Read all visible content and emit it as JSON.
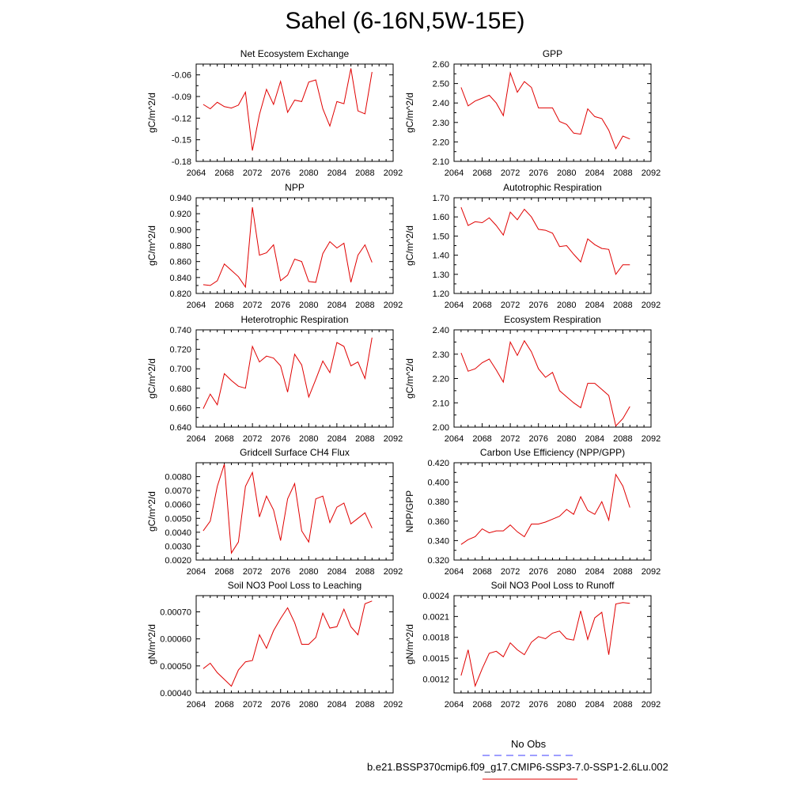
{
  "page": {
    "title": "Sahel (6-16N,5W-15E)"
  },
  "legend": {
    "entries": [
      {
        "label": "No Obs",
        "color": "#3c3cff",
        "dash": true
      },
      {
        "label": "b.e21.BSSP370cmip6.f09_g17.CMIP6-SSP3-7.0-SSP1-2.6Lu.002",
        "color": "#e00000",
        "dash": false
      }
    ]
  },
  "colors": {
    "series": "#e00000",
    "axis": "#000000"
  },
  "chart_data": [
    {
      "type": "line",
      "title": "Net Ecosystem Exchange",
      "ylabel": "gC/m^2/d",
      "xlim": [
        2064,
        2092
      ],
      "ylim": [
        -0.18,
        -0.045
      ],
      "xticks": [
        "2064",
        "2068",
        "2072",
        "2076",
        "2080",
        "2084",
        "2088",
        "2092"
      ],
      "yticks": [
        "-0.18",
        "-0.15",
        "-0.12",
        "-0.09",
        "-0.06"
      ],
      "yticks_values": [
        -0.18,
        -0.15,
        -0.12,
        -0.09,
        -0.06
      ],
      "x": [
        2065,
        2066,
        2067,
        2068,
        2069,
        2070,
        2071,
        2072,
        2073,
        2074,
        2075,
        2076,
        2077,
        2078,
        2079,
        2080,
        2081,
        2082,
        2083,
        2084,
        2085,
        2086,
        2087,
        2088,
        2089
      ],
      "values": [
        -0.101,
        -0.107,
        -0.098,
        -0.104,
        -0.106,
        -0.102,
        -0.084,
        -0.165,
        -0.115,
        -0.08,
        -0.101,
        -0.069,
        -0.112,
        -0.095,
        -0.097,
        -0.07,
        -0.067,
        -0.107,
        -0.131,
        -0.097,
        -0.1,
        -0.051,
        -0.11,
        -0.114,
        -0.056
      ]
    },
    {
      "type": "line",
      "title": "GPP",
      "ylabel": "gC/m^2/d",
      "xlim": [
        2064,
        2092
      ],
      "ylim": [
        2.1,
        2.6
      ],
      "xticks": [
        "2064",
        "2068",
        "2072",
        "2076",
        "2080",
        "2084",
        "2088",
        "2092"
      ],
      "yticks": [
        "2.10",
        "2.20",
        "2.30",
        "2.40",
        "2.50",
        "2.60"
      ],
      "yticks_values": [
        2.1,
        2.2,
        2.3,
        2.4,
        2.5,
        2.6
      ],
      "x": [
        2065,
        2066,
        2067,
        2068,
        2069,
        2070,
        2071,
        2072,
        2073,
        2074,
        2075,
        2076,
        2077,
        2078,
        2079,
        2080,
        2081,
        2082,
        2083,
        2084,
        2085,
        2086,
        2087,
        2088,
        2089
      ],
      "values": [
        2.48,
        2.385,
        2.41,
        2.425,
        2.44,
        2.4,
        2.335,
        2.555,
        2.455,
        2.51,
        2.48,
        2.375,
        2.375,
        2.375,
        2.305,
        2.29,
        2.245,
        2.24,
        2.37,
        2.33,
        2.32,
        2.26,
        2.165,
        2.23,
        2.215
      ]
    },
    {
      "type": "line",
      "title": "NPP",
      "ylabel": "gC/m^2/d",
      "xlim": [
        2064,
        2092
      ],
      "ylim": [
        0.82,
        0.94
      ],
      "xticks": [
        "2064",
        "2068",
        "2072",
        "2076",
        "2080",
        "2084",
        "2088",
        "2092"
      ],
      "yticks": [
        "0.820",
        "0.840",
        "0.860",
        "0.880",
        "0.900",
        "0.920",
        "0.940"
      ],
      "yticks_values": [
        0.82,
        0.84,
        0.86,
        0.88,
        0.9,
        0.92,
        0.94
      ],
      "x": [
        2065,
        2066,
        2067,
        2068,
        2069,
        2070,
        2071,
        2072,
        2073,
        2074,
        2075,
        2076,
        2077,
        2078,
        2079,
        2080,
        2081,
        2082,
        2083,
        2084,
        2085,
        2086,
        2087,
        2088,
        2089
      ],
      "values": [
        0.831,
        0.83,
        0.836,
        0.857,
        0.849,
        0.841,
        0.828,
        0.928,
        0.868,
        0.871,
        0.881,
        0.836,
        0.843,
        0.863,
        0.86,
        0.835,
        0.834,
        0.87,
        0.885,
        0.877,
        0.883,
        0.834,
        0.868,
        0.881,
        0.859
      ]
    },
    {
      "type": "line",
      "title": "Autotrophic Respiration",
      "ylabel": "gC/m^2/d",
      "xlim": [
        2064,
        2092
      ],
      "ylim": [
        1.2,
        1.7
      ],
      "xticks": [
        "2064",
        "2068",
        "2072",
        "2076",
        "2080",
        "2084",
        "2088",
        "2092"
      ],
      "yticks": [
        "1.20",
        "1.30",
        "1.40",
        "1.50",
        "1.60",
        "1.70"
      ],
      "yticks_values": [
        1.2,
        1.3,
        1.4,
        1.5,
        1.6,
        1.7
      ],
      "x": [
        2065,
        2066,
        2067,
        2068,
        2069,
        2070,
        2071,
        2072,
        2073,
        2074,
        2075,
        2076,
        2077,
        2078,
        2079,
        2080,
        2081,
        2082,
        2083,
        2084,
        2085,
        2086,
        2087,
        2088,
        2089
      ],
      "values": [
        1.65,
        1.555,
        1.575,
        1.57,
        1.595,
        1.555,
        1.505,
        1.625,
        1.585,
        1.64,
        1.6,
        1.535,
        1.53,
        1.515,
        1.445,
        1.45,
        1.405,
        1.365,
        1.485,
        1.455,
        1.435,
        1.43,
        1.3,
        1.35,
        1.35
      ]
    },
    {
      "type": "line",
      "title": "Heterotrophic Respiration",
      "ylabel": "gC/m^2/d",
      "xlim": [
        2064,
        2092
      ],
      "ylim": [
        0.64,
        0.74
      ],
      "xticks": [
        "2064",
        "2068",
        "2072",
        "2076",
        "2080",
        "2084",
        "2088",
        "2092"
      ],
      "yticks": [
        "0.640",
        "0.660",
        "0.680",
        "0.700",
        "0.720",
        "0.740"
      ],
      "yticks_values": [
        0.64,
        0.66,
        0.68,
        0.7,
        0.72,
        0.74
      ],
      "x": [
        2065,
        2066,
        2067,
        2068,
        2069,
        2070,
        2071,
        2072,
        2073,
        2074,
        2075,
        2076,
        2077,
        2078,
        2079,
        2080,
        2081,
        2082,
        2083,
        2084,
        2085,
        2086,
        2087,
        2088,
        2089
      ],
      "values": [
        0.659,
        0.674,
        0.663,
        0.695,
        0.688,
        0.682,
        0.68,
        0.723,
        0.707,
        0.713,
        0.711,
        0.703,
        0.676,
        0.715,
        0.704,
        0.671,
        0.689,
        0.708,
        0.696,
        0.727,
        0.723,
        0.703,
        0.707,
        0.69,
        0.732
      ]
    },
    {
      "type": "line",
      "title": "Ecosystem Respiration",
      "ylabel": "gC/m^2/d",
      "xlim": [
        2064,
        2092
      ],
      "ylim": [
        2.0,
        2.4
      ],
      "xticks": [
        "2064",
        "2068",
        "2072",
        "2076",
        "2080",
        "2084",
        "2088",
        "2092"
      ],
      "yticks": [
        "2.00",
        "2.10",
        "2.20",
        "2.30",
        "2.40"
      ],
      "yticks_values": [
        2.0,
        2.1,
        2.2,
        2.3,
        2.4
      ],
      "x": [
        2065,
        2066,
        2067,
        2068,
        2069,
        2070,
        2071,
        2072,
        2073,
        2074,
        2075,
        2076,
        2077,
        2078,
        2079,
        2080,
        2081,
        2082,
        2083,
        2084,
        2085,
        2086,
        2087,
        2088,
        2089
      ],
      "values": [
        2.305,
        2.23,
        2.24,
        2.265,
        2.28,
        2.235,
        2.185,
        2.35,
        2.295,
        2.355,
        2.31,
        2.24,
        2.205,
        2.225,
        2.15,
        2.125,
        2.1,
        2.08,
        2.18,
        2.18,
        2.155,
        2.13,
        2.005,
        2.035,
        2.085
      ]
    },
    {
      "type": "line",
      "title": "Gridcell Surface CH4 Flux",
      "ylabel": "gC/m^2/d",
      "xlim": [
        2064,
        2092
      ],
      "ylim": [
        0.002,
        0.009
      ],
      "xticks": [
        "2064",
        "2068",
        "2072",
        "2076",
        "2080",
        "2084",
        "2088",
        "2092"
      ],
      "yticks": [
        "0.0020",
        "0.0030",
        "0.0040",
        "0.0050",
        "0.0060",
        "0.0070",
        "0.0080"
      ],
      "yticks_values": [
        0.002,
        0.003,
        0.004,
        0.005,
        0.006,
        0.007,
        0.008
      ],
      "x": [
        2065,
        2066,
        2067,
        2068,
        2069,
        2070,
        2071,
        2072,
        2073,
        2074,
        2075,
        2076,
        2077,
        2078,
        2079,
        2080,
        2081,
        2082,
        2083,
        2084,
        2085,
        2086,
        2087,
        2088,
        2089
      ],
      "values": [
        0.0041,
        0.0048,
        0.0073,
        0.0089,
        0.0025,
        0.0033,
        0.0073,
        0.0083,
        0.0051,
        0.0066,
        0.0056,
        0.0034,
        0.0064,
        0.0075,
        0.0041,
        0.0033,
        0.0064,
        0.0066,
        0.0047,
        0.0058,
        0.0061,
        0.0046,
        0.005,
        0.0054,
        0.0043
      ]
    },
    {
      "type": "line",
      "title": "Carbon Use Efficiency (NPP/GPP)",
      "ylabel": "NPP/GPP",
      "xlim": [
        2064,
        2092
      ],
      "ylim": [
        0.32,
        0.42
      ],
      "xticks": [
        "2064",
        "2068",
        "2072",
        "2076",
        "2080",
        "2084",
        "2088",
        "2092"
      ],
      "yticks": [
        "0.320",
        "0.340",
        "0.360",
        "0.380",
        "0.400",
        "0.420"
      ],
      "yticks_values": [
        0.32,
        0.34,
        0.36,
        0.38,
        0.4,
        0.42
      ],
      "x": [
        2065,
        2066,
        2067,
        2068,
        2069,
        2070,
        2071,
        2072,
        2073,
        2074,
        2075,
        2076,
        2077,
        2078,
        2079,
        2080,
        2081,
        2082,
        2083,
        2084,
        2085,
        2086,
        2087,
        2088,
        2089
      ],
      "values": [
        0.336,
        0.341,
        0.344,
        0.352,
        0.348,
        0.35,
        0.35,
        0.356,
        0.349,
        0.344,
        0.357,
        0.357,
        0.359,
        0.362,
        0.365,
        0.372,
        0.367,
        0.385,
        0.371,
        0.367,
        0.38,
        0.361,
        0.408,
        0.396,
        0.374
      ]
    },
    {
      "type": "line",
      "title": "Soil NO3 Pool Loss to Leaching",
      "ylabel": "gN/m^2/d",
      "xlim": [
        2064,
        2092
      ],
      "ylim": [
        0.0004,
        0.00076
      ],
      "xticks": [
        "2064",
        "2068",
        "2072",
        "2076",
        "2080",
        "2084",
        "2088",
        "2092"
      ],
      "yticks": [
        "0.00040",
        "0.00050",
        "0.00060",
        "0.00070"
      ],
      "yticks_values": [
        0.0004,
        0.0005,
        0.0006,
        0.0007
      ],
      "x": [
        2065,
        2066,
        2067,
        2068,
        2069,
        2070,
        2071,
        2072,
        2073,
        2074,
        2075,
        2076,
        2077,
        2078,
        2079,
        2080,
        2081,
        2082,
        2083,
        2084,
        2085,
        2086,
        2087,
        2088,
        2089
      ],
      "values": [
        0.00049,
        0.00051,
        0.000475,
        0.00045,
        0.000425,
        0.000485,
        0.000515,
        0.00052,
        0.000615,
        0.000565,
        0.00063,
        0.000675,
        0.000715,
        0.00066,
        0.00058,
        0.00058,
        0.000605,
        0.000695,
        0.00064,
        0.000645,
        0.00071,
        0.000645,
        0.000615,
        0.00073,
        0.00074
      ]
    },
    {
      "type": "line",
      "title": "Soil NO3 Pool Loss to Runoff",
      "ylabel": "gN/m^2/d",
      "xlim": [
        2064,
        2092
      ],
      "ylim": [
        0.001,
        0.0024
      ],
      "xticks": [
        "2064",
        "2068",
        "2072",
        "2076",
        "2080",
        "2084",
        "2088",
        "2092"
      ],
      "yticks": [
        "0.0012",
        "0.0015",
        "0.0018",
        "0.0021",
        "0.0024"
      ],
      "yticks_values": [
        0.0012,
        0.0015,
        0.0018,
        0.0021,
        0.0024
      ],
      "x": [
        2065,
        2066,
        2067,
        2068,
        2069,
        2070,
        2071,
        2072,
        2073,
        2074,
        2075,
        2076,
        2077,
        2078,
        2079,
        2080,
        2081,
        2082,
        2083,
        2084,
        2085,
        2086,
        2087,
        2088,
        2089
      ],
      "values": [
        0.00125,
        0.00162,
        0.0011,
        0.00135,
        0.00157,
        0.0016,
        0.00152,
        0.00172,
        0.00162,
        0.00155,
        0.00173,
        0.00181,
        0.00178,
        0.00186,
        0.00189,
        0.00178,
        0.00176,
        0.00218,
        0.00177,
        0.00208,
        0.00216,
        0.00155,
        0.00228,
        0.0023,
        0.00229
      ]
    }
  ]
}
